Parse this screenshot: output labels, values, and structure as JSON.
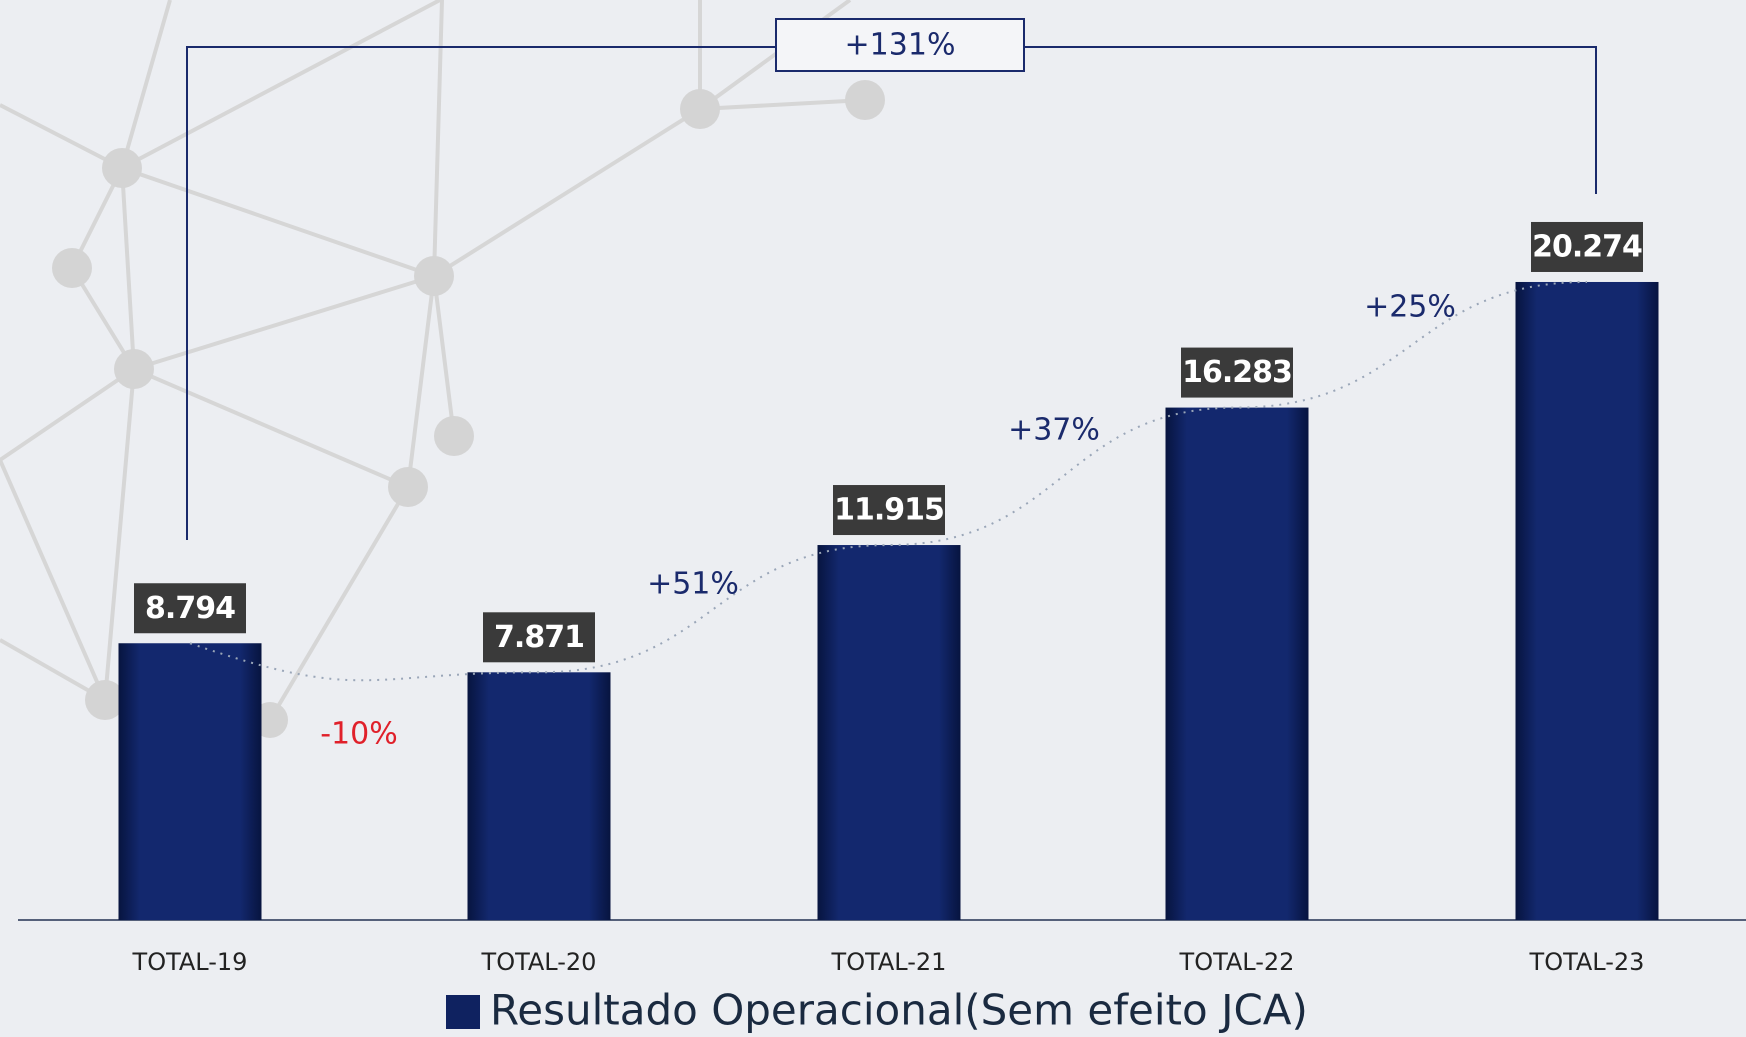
{
  "chart_data": {
    "type": "bar",
    "categories": [
      "TOTAL-19",
      "TOTAL-20",
      "TOTAL-21",
      "TOTAL-22",
      "TOTAL-23"
    ],
    "series": [
      {
        "name": "Resultado Operacional(Sem efeito JCA)",
        "color": "#0f2260",
        "values": [
          8794,
          7871,
          11915,
          16283,
          20274
        ],
        "value_labels": [
          "8.794",
          "7.871",
          "11.915",
          "16.283",
          "20.274"
        ]
      }
    ],
    "growth_labels": [
      "-10%",
      "+51%",
      "+37%",
      "+25%"
    ],
    "total_growth_label": "+131%"
  }
}
